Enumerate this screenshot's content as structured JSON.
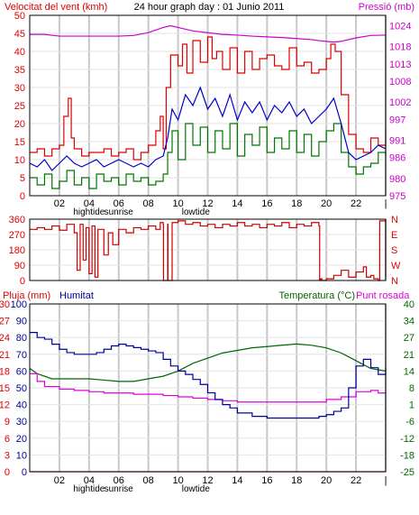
{
  "colors": {
    "wind_avg": "#0000cc",
    "wind_gust": "#dd0000",
    "wind_min": "#007700",
    "pressure": "#cc00cc",
    "direction": "#cc0000",
    "humidity": "#000099",
    "temperature": "#006600",
    "dewpoint": "#dd00dd",
    "rain": "#dd0000",
    "grid": "#c8c8c8",
    "frame": "#000000"
  },
  "chart_data": [
    {
      "type": "line",
      "id": "wind",
      "title": "24 hour graph day : 01 Junio 2011",
      "ylabel": "Velocitat del vent (kmh)",
      "y2label": "Pressió (mb)",
      "ylim": [
        0,
        50
      ],
      "yticks": [
        "0",
        "5",
        "10",
        "15",
        "20",
        "25",
        "30",
        "35",
        "40",
        "45",
        "50"
      ],
      "y2lim": [
        975,
        1027
      ],
      "y2ticks": [
        "975",
        "980",
        "986",
        "991",
        "997",
        "1002",
        "1008",
        "1013",
        "1018",
        "1024"
      ],
      "xlim": [
        0,
        24
      ],
      "xticks": [
        "02",
        "04",
        "06",
        "08",
        "10",
        "12",
        "14",
        "16",
        "18",
        "20",
        "22",
        "|"
      ],
      "xtick_values": [
        2,
        4,
        6,
        8,
        10,
        12,
        14,
        16,
        18,
        20,
        22,
        24
      ],
      "annotations": [
        {
          "text": "hightide",
          "x": 4
        },
        {
          "text": "sunrise",
          "x": 6
        },
        {
          "text": "lowtide",
          "x": 11.2
        }
      ],
      "series": [
        {
          "role": "gust",
          "color_key": "wind_gust",
          "x": [
            0,
            0.5,
            1,
            1.5,
            2,
            2.3,
            2.6,
            2.8,
            3,
            3.5,
            4,
            4.5,
            5,
            5.5,
            6,
            6.5,
            7,
            7.5,
            8,
            8.5,
            8.8,
            9,
            9.2,
            9.5,
            10,
            10.3,
            10.6,
            11,
            11.5,
            12,
            12.3,
            12.6,
            13,
            13.5,
            14,
            14.5,
            15,
            15.5,
            16,
            16.5,
            17,
            17.5,
            18,
            18.5,
            19,
            19.5,
            20,
            20.3,
            20.6,
            21,
            21.5,
            22,
            22.5,
            23,
            23.5,
            24
          ],
          "values": [
            12,
            13,
            11,
            13,
            14,
            22,
            27,
            16,
            13,
            11,
            12,
            12,
            13,
            11,
            12,
            13,
            10,
            12,
            14,
            18,
            22,
            13,
            30,
            39,
            36,
            42,
            34,
            43,
            37,
            44,
            38,
            40,
            35,
            41,
            34,
            40,
            35,
            38,
            39,
            36,
            35,
            41,
            36,
            37,
            34,
            35,
            38,
            42,
            40,
            28,
            17,
            13,
            12,
            16,
            14,
            18
          ]
        },
        {
          "role": "average",
          "color_key": "wind_avg",
          "x": [
            0,
            0.5,
            1,
            1.5,
            2,
            2.5,
            3,
            3.5,
            4,
            4.5,
            5,
            5.5,
            6,
            6.5,
            7,
            7.5,
            8,
            8.5,
            9,
            9.3,
            9.6,
            10,
            10.5,
            11,
            11.5,
            12,
            12.5,
            13,
            13.5,
            14,
            14.5,
            15,
            15.5,
            16,
            16.5,
            17,
            17.5,
            18,
            18.5,
            19,
            19.5,
            20,
            20.5,
            21,
            21.5,
            22,
            22.5,
            23,
            23.5,
            24
          ],
          "values": [
            9,
            8,
            10,
            7,
            9,
            11,
            9,
            8,
            9,
            10,
            8,
            9,
            10,
            9,
            8,
            9,
            8,
            10,
            11,
            16,
            24,
            21,
            28,
            25,
            30,
            24,
            27,
            22,
            28,
            21,
            26,
            23,
            26,
            21,
            25,
            23,
            26,
            22,
            24,
            20,
            22,
            24,
            27,
            20,
            12,
            10,
            11,
            12,
            14,
            13
          ]
        },
        {
          "role": "min",
          "color_key": "wind_min",
          "x": [
            0,
            0.5,
            1,
            1.5,
            2,
            2.5,
            3,
            3.5,
            4,
            4.5,
            5,
            5.5,
            6,
            6.5,
            7,
            7.5,
            8,
            8.5,
            9,
            9.3,
            9.6,
            10,
            10.5,
            11,
            11.5,
            12,
            12.5,
            13,
            13.5,
            14,
            14.5,
            15,
            15.5,
            16,
            16.5,
            17,
            17.5,
            18,
            18.5,
            19,
            19.5,
            20,
            20.5,
            21,
            21.5,
            22,
            22.5,
            23,
            23.5,
            24
          ],
          "values": [
            5,
            3,
            6,
            2,
            4,
            7,
            3,
            5,
            2,
            6,
            4,
            5,
            3,
            6,
            4,
            5,
            3,
            4,
            6,
            12,
            18,
            10,
            20,
            14,
            19,
            12,
            18,
            13,
            20,
            11,
            17,
            14,
            19,
            12,
            16,
            13,
            18,
            12,
            17,
            11,
            15,
            18,
            20,
            12,
            8,
            6,
            8,
            9,
            12,
            11
          ]
        },
        {
          "role": "pressure",
          "color_key": "pressure",
          "axis": "right",
          "x": [
            0,
            1,
            2,
            3,
            4,
            5,
            6,
            7,
            8,
            9,
            9.5,
            10,
            11,
            12,
            13,
            14,
            15,
            16,
            17,
            18,
            19,
            19.5,
            20,
            20.5,
            21,
            22,
            23,
            24
          ],
          "values": [
            1021.5,
            1021.5,
            1021,
            1021,
            1021,
            1021,
            1021,
            1021.2,
            1022,
            1023.5,
            1024,
            1023.5,
            1022.5,
            1022,
            1021.5,
            1021.3,
            1021,
            1020.8,
            1020.6,
            1020.3,
            1020,
            1019.7,
            1019.5,
            1019.3,
            1019.5,
            1020.5,
            1021.2,
            1021.3
          ]
        }
      ]
    },
    {
      "type": "line",
      "id": "direction",
      "ylim": [
        0,
        360
      ],
      "yticks": [
        "0",
        "90",
        "180",
        "270",
        "360"
      ],
      "y2ticks": [
        "N",
        "W",
        "S",
        "E",
        "N"
      ],
      "xlim": [
        0,
        24
      ],
      "series": [
        {
          "role": "direction",
          "color_key": "direction",
          "x": [
            0,
            0.5,
            1,
            1.5,
            2,
            2.5,
            3,
            3.2,
            3.4,
            3.6,
            3.8,
            4,
            4.2,
            4.4,
            4.6,
            5,
            5.3,
            5.6,
            6,
            6.5,
            7,
            7.5,
            8,
            8.5,
            8.8,
            9,
            9.02,
            9.3,
            9.32,
            9.6,
            10,
            10.5,
            11,
            11.5,
            12,
            12.5,
            13,
            13.5,
            14,
            14.5,
            15,
            15.5,
            16,
            16.5,
            17,
            17.5,
            18,
            18.5,
            19,
            19.5,
            19.55,
            19.6,
            19.7,
            20,
            20.5,
            21,
            21.5,
            22,
            22.5,
            22.7,
            23,
            23.2,
            23.5,
            23.6,
            23.8,
            24
          ],
          "values": [
            300,
            310,
            300,
            320,
            295,
            330,
            280,
            60,
            330,
            120,
            310,
            40,
            320,
            20,
            300,
            150,
            280,
            210,
            300,
            280,
            310,
            300,
            320,
            300,
            340,
            330,
            0,
            330,
            0,
            340,
            350,
            330,
            340,
            320,
            330,
            310,
            330,
            320,
            340,
            320,
            330,
            310,
            330,
            320,
            340,
            310,
            330,
            320,
            340,
            320,
            0,
            10,
            0,
            10,
            30,
            60,
            20,
            50,
            80,
            20,
            30,
            10,
            0,
            350,
            350,
            20
          ]
        }
      ]
    },
    {
      "type": "line",
      "id": "temp_hum_rain",
      "ylabel": "Pluja (mm)",
      "y1label": "Humitat",
      "y2label": "Temperatura (°C)",
      "y2label_b": "Punt rosada",
      "ylim": [
        0,
        100
      ],
      "yticks_rain": [
        "0",
        "3",
        "6",
        "9",
        "12",
        "15",
        "18",
        "21",
        "24",
        "27",
        "30"
      ],
      "yticks_hum": [
        "0",
        "10",
        "20",
        "30",
        "40",
        "50",
        "60",
        "70",
        "80",
        "90",
        "100"
      ],
      "y2lim": [
        -25,
        40
      ],
      "y2ticks": [
        "-25",
        "-18",
        "-12",
        "-6",
        "1",
        "8",
        "14",
        "21",
        "27",
        "34",
        "40"
      ],
      "xlim": [
        0,
        24
      ],
      "xticks": [
        "02",
        "04",
        "06",
        "08",
        "10",
        "12",
        "14",
        "16",
        "18",
        "20",
        "22",
        "|"
      ],
      "xtick_values": [
        2,
        4,
        6,
        8,
        10,
        12,
        14,
        16,
        18,
        20,
        22,
        24
      ],
      "annotations": [
        {
          "text": "hightide",
          "x": 4
        },
        {
          "text": "sunrise",
          "x": 6
        },
        {
          "text": "lowtide",
          "x": 11.2
        }
      ],
      "series": [
        {
          "role": "humidity",
          "color_key": "humidity",
          "x": [
            0,
            0.5,
            1,
            1.5,
            2,
            2.5,
            3,
            3.5,
            4,
            4.5,
            5,
            5.5,
            6,
            6.5,
            7,
            7.5,
            8,
            8.5,
            9,
            9.5,
            10,
            10.5,
            11,
            11.5,
            12,
            12.5,
            13,
            13.5,
            14,
            15,
            16,
            17,
            18,
            19,
            19.5,
            20,
            20.5,
            21,
            21.5,
            22,
            22.5,
            23,
            23.5,
            24
          ],
          "values": [
            83,
            80,
            79,
            76,
            73,
            71,
            70,
            70,
            70,
            71,
            73,
            75,
            76,
            75,
            74,
            73,
            72,
            71,
            67,
            63,
            60,
            58,
            55,
            52,
            47,
            43,
            40,
            38,
            35,
            33,
            32,
            32,
            32,
            32,
            33,
            34,
            36,
            38,
            50,
            63,
            67,
            62,
            58,
            62
          ]
        },
        {
          "role": "temperature",
          "color_key": "temperature",
          "axis": "right",
          "x": [
            0,
            0.5,
            1,
            1.5,
            2,
            3,
            4,
            5,
            6,
            7,
            8,
            9,
            10,
            11,
            12,
            13,
            14,
            15,
            16,
            17,
            18,
            19,
            20,
            21,
            22,
            23,
            24
          ],
          "values": [
            15,
            13,
            12,
            11,
            11,
            11,
            11,
            10.5,
            10,
            10,
            11,
            12,
            14,
            17,
            19,
            21,
            22,
            23,
            23.5,
            24,
            24.5,
            24,
            23,
            21,
            18,
            15,
            14
          ]
        },
        {
          "role": "dewpoint",
          "color_key": "dewpoint",
          "axis": "right",
          "x": [
            0,
            0.5,
            1,
            2,
            3,
            4,
            5,
            6,
            7,
            8,
            9,
            10,
            11,
            12,
            13,
            14,
            15,
            16,
            17,
            18,
            19,
            20,
            21,
            22,
            23,
            23.5,
            24
          ],
          "values": [
            13,
            10,
            8,
            7,
            6.5,
            6,
            5.5,
            5.5,
            5,
            5,
            4.5,
            4,
            3.5,
            3,
            2.5,
            2,
            2,
            2,
            2,
            2,
            2,
            3,
            4,
            6,
            6.5,
            5.5,
            5
          ]
        },
        {
          "role": "rain",
          "color_key": "rain",
          "x": [
            0,
            24
          ],
          "values": [
            0,
            0
          ]
        }
      ]
    }
  ]
}
